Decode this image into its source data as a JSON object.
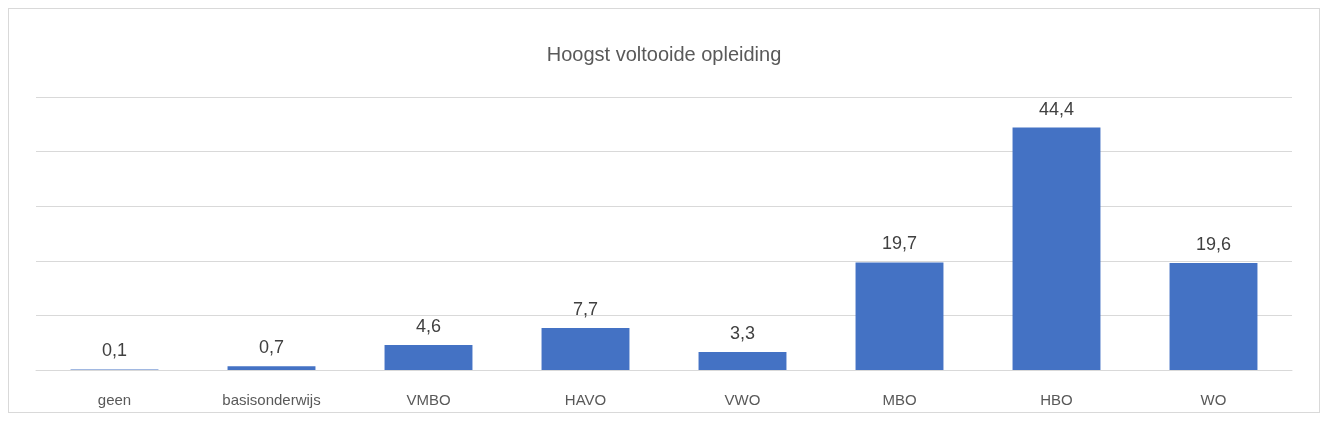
{
  "chart_data": {
    "type": "bar",
    "title": "Hoogst voltooide opleiding",
    "categories": [
      "geen",
      "basisonderwijs",
      "VMBO",
      "HAVO",
      "VWO",
      "MBO",
      "HBO",
      "WO"
    ],
    "values": [
      0.1,
      0.7,
      4.6,
      7.7,
      3.3,
      19.7,
      44.4,
      19.6
    ],
    "value_labels": [
      "0,1",
      "0,7",
      "4,6",
      "7,7",
      "3,3",
      "19,7",
      "44,4",
      "19,6"
    ],
    "color": "#4472c4",
    "ylim": [
      0,
      50
    ],
    "yticks": [
      {
        "value": 0,
        "label": null
      },
      {
        "value": 10,
        "label": null
      },
      {
        "value": 20,
        "label": null
      },
      {
        "value": 30,
        "label": null
      },
      {
        "value": 40,
        "label": null
      },
      {
        "value": 50,
        "label": null
      }
    ],
    "tick_labels": "x",
    "grid": "y"
  }
}
